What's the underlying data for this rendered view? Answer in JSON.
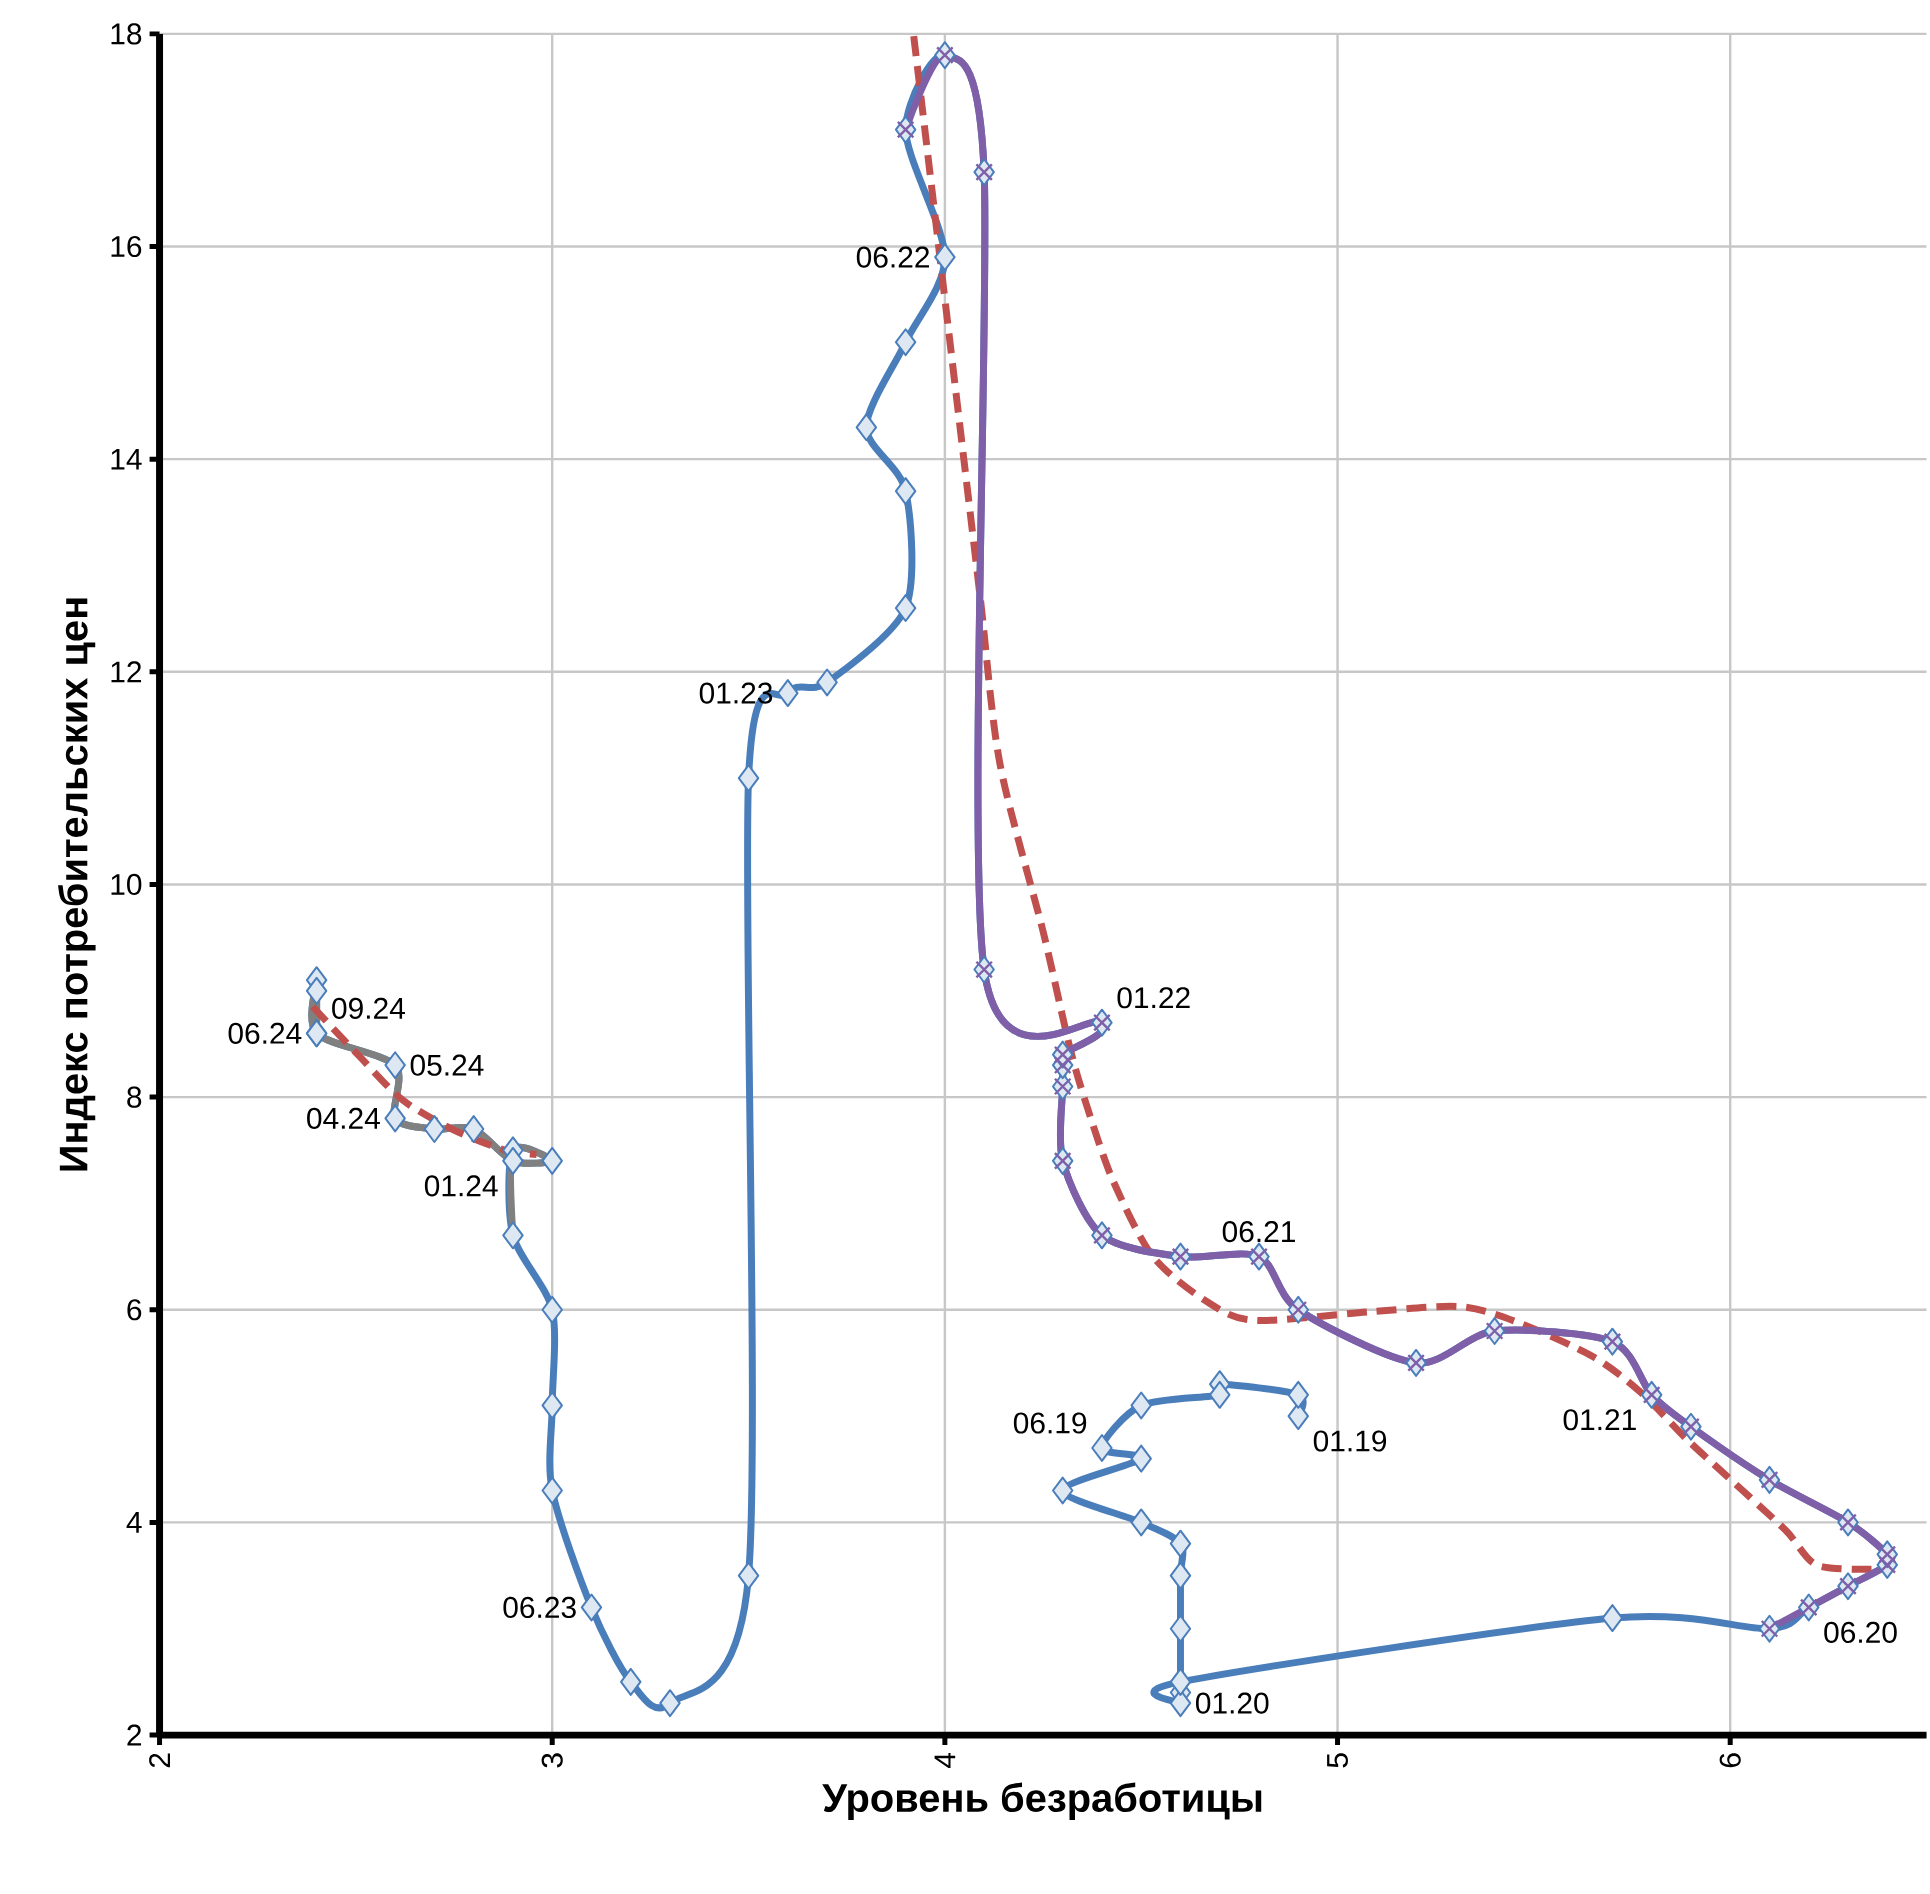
{
  "chart_data": {
    "type": "line",
    "xlabel": "Уровень безработицы",
    "ylabel": "Индекс потребительских цен",
    "xlim": [
      2,
      6.5
    ],
    "ylim": [
      2,
      18
    ],
    "xticks": [
      2,
      3,
      4,
      5,
      6
    ],
    "yticks": [
      2,
      4,
      6,
      8,
      10,
      12,
      14,
      16,
      18
    ],
    "grid": true,
    "series": [
      {
        "color": "#4a7ebb",
        "marker": "diamond",
        "line_style": "solid",
        "x": [
          4.9,
          4.9,
          4.7,
          4.7,
          4.5,
          4.4,
          4.5,
          4.3,
          4.5,
          4.6,
          4.6,
          4.6,
          4.6,
          4.6,
          4.6,
          5.7,
          6.1,
          6.2,
          6.3,
          6.4,
          6.4,
          6.3,
          6.1,
          5.9,
          5.8,
          5.7,
          5.4,
          5.2,
          4.9,
          4.8,
          4.6,
          4.4,
          4.3,
          4.3,
          4.3,
          4.3,
          4.4,
          4.1,
          4.1,
          4.0,
          3.9,
          4.0,
          3.9,
          3.8,
          3.9,
          3.9,
          3.7,
          3.6,
          3.5,
          3.5,
          3.3,
          3.2,
          3.1,
          3.0,
          3.0,
          3.0,
          2.9,
          2.9,
          3.0,
          2.9,
          2.8,
          2.7,
          2.6,
          2.6,
          2.4,
          2.4,
          2.4,
          2.4
        ],
        "values": [
          5.0,
          5.2,
          5.3,
          5.2,
          5.1,
          4.7,
          4.6,
          4.3,
          4.0,
          3.8,
          3.5,
          3.0,
          2.4,
          2.3,
          2.5,
          3.1,
          3.0,
          3.2,
          3.4,
          3.6,
          3.7,
          4.0,
          4.4,
          4.9,
          5.2,
          5.7,
          5.8,
          5.5,
          6.0,
          6.5,
          6.5,
          6.7,
          7.4,
          8.1,
          8.3,
          8.4,
          8.7,
          9.2,
          16.7,
          17.8,
          17.1,
          15.9,
          15.1,
          14.3,
          13.7,
          12.6,
          11.9,
          11.8,
          11.0,
          3.5,
          2.3,
          2.5,
          3.2,
          4.3,
          5.1,
          6.0,
          6.7,
          7.5,
          7.4,
          7.4,
          7.7,
          7.7,
          7.8,
          8.3,
          8.6,
          9.1,
          9.0,
          8.6
        ]
      },
      {
        "color": "#808080",
        "marker": "none",
        "line_style": "solid",
        "x": [
          2.9,
          2.9,
          3.0,
          2.9,
          2.8,
          2.7,
          2.6,
          2.6,
          2.4,
          2.4,
          2.4,
          2.4
        ],
        "values": [
          6.7,
          7.5,
          7.4,
          7.4,
          7.7,
          7.7,
          7.8,
          8.3,
          8.6,
          9.1,
          9.0,
          8.6
        ]
      },
      {
        "color": "#c0504d",
        "marker": "none",
        "line_style": "dashed",
        "x": [
          6.36,
          6.22,
          6.14,
          5.99,
          5.89,
          5.77,
          5.65,
          5.46,
          5.31,
          5.08,
          4.79,
          4.67,
          4.53,
          4.43,
          4.37,
          4.32,
          4.25,
          4.14,
          4.09,
          4.03,
          3.98,
          3.94,
          3.92
        ],
        "values": [
          3.56,
          3.6,
          3.93,
          4.44,
          4.78,
          5.23,
          5.56,
          5.88,
          6.03,
          5.98,
          5.9,
          6.07,
          6.5,
          7.2,
          7.82,
          8.44,
          9.56,
          11.14,
          12.7,
          14.57,
          16.13,
          17.38,
          18.0
        ]
      },
      {
        "color": "#c0504d",
        "marker": "none",
        "line_style": "dashed",
        "x": [
          2.39,
          2.51,
          2.62,
          2.75,
          2.88,
          2.96
        ],
        "values": [
          8.85,
          8.38,
          7.97,
          7.69,
          7.5,
          7.46
        ]
      },
      {
        "color": "#7f60a8",
        "marker": "cross",
        "line_style": "solid",
        "x": [
          6.1,
          6.2,
          6.3,
          6.4,
          6.4,
          6.3,
          6.1,
          5.9,
          5.8,
          5.7,
          5.4,
          5.2,
          4.9,
          4.8,
          4.6,
          4.4,
          4.3,
          4.3,
          4.3,
          4.3,
          4.4,
          4.1,
          4.1,
          4.0,
          3.9
        ],
        "values": [
          3.0,
          3.2,
          3.4,
          3.6,
          3.7,
          4.0,
          4.4,
          4.9,
          5.2,
          5.7,
          5.8,
          5.5,
          6.0,
          6.5,
          6.5,
          6.7,
          7.4,
          8.1,
          8.3,
          8.4,
          8.7,
          9.2,
          16.7,
          17.8,
          17.1
        ]
      }
    ],
    "annotations": [
      {
        "text": "01.19",
        "x": 4.9,
        "y": 5.0
      },
      {
        "text": "06.19",
        "x": 4.4,
        "y": 4.7
      },
      {
        "text": "01.20",
        "x": 4.6,
        "y": 2.3
      },
      {
        "text": "06.20",
        "x": 6.2,
        "y": 3.2
      },
      {
        "text": "01.21",
        "x": 5.8,
        "y": 5.2
      },
      {
        "text": "06.21",
        "x": 4.8,
        "y": 6.5
      },
      {
        "text": "01.22",
        "x": 4.4,
        "y": 8.7
      },
      {
        "text": "06.22",
        "x": 4.0,
        "y": 15.9
      },
      {
        "text": "01.23",
        "x": 3.6,
        "y": 11.8
      },
      {
        "text": "06.23",
        "x": 3.1,
        "y": 3.2
      },
      {
        "text": "01.24",
        "x": 2.9,
        "y": 7.4
      },
      {
        "text": "04.24",
        "x": 2.6,
        "y": 7.8
      },
      {
        "text": "05.24",
        "x": 2.6,
        "y": 8.3
      },
      {
        "text": "06.24",
        "x": 2.4,
        "y": 8.6
      },
      {
        "text": "09.24",
        "x": 2.4,
        "y": 8.6
      }
    ]
  }
}
